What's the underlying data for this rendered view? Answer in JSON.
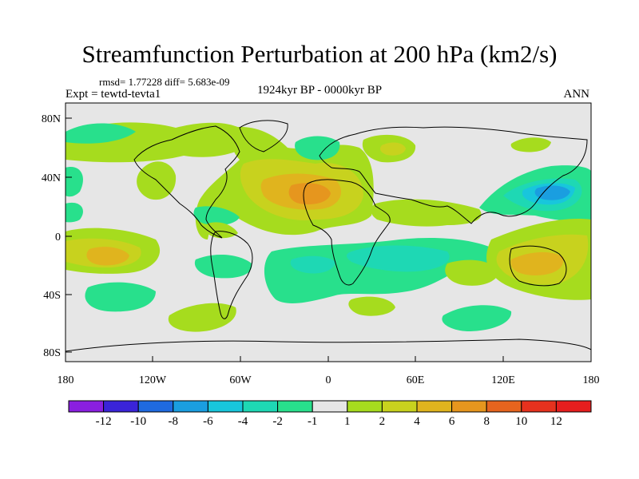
{
  "title": "Streamfunction Perturbation at 200 hPa (km2/s)",
  "stats_line": "rmsd= 1.77228  diff= 5.683e-09",
  "experiment": "Expt = tewtd-tevta1",
  "period": "1924kyr BP - 0000kyr BP",
  "season": "ANN",
  "lat_labels": [
    "80N",
    "40N",
    "0",
    "40S",
    "80S"
  ],
  "lon_labels": [
    "180",
    "120W",
    "60W",
    "0",
    "60E",
    "120E",
    "180"
  ],
  "colorbar": {
    "labels": [
      "-12",
      "-10",
      "-8",
      "-6",
      "-4",
      "-2",
      "-1",
      "1",
      "2",
      "4",
      "6",
      "8",
      "10",
      "12"
    ],
    "colors": [
      "#8a1fe0",
      "#3a24d8",
      "#1f6ae0",
      "#1a9ee0",
      "#18c6dc",
      "#1ed8b4",
      "#28e08c",
      "#e6e6e6",
      "#a6dc1e",
      "#c8d21e",
      "#e0b41e",
      "#e6961e",
      "#e6641e",
      "#e6321e",
      "#e61e1e"
    ]
  },
  "map_features": [
    {
      "label": "africa-high",
      "lon": -5,
      "lat": 27,
      "value": 8
    },
    {
      "label": "nw-pacific-low",
      "lon": 150,
      "lat": 30,
      "value": -8
    },
    {
      "label": "south-pacific-high",
      "lon": -145,
      "lat": -15,
      "value": 6
    },
    {
      "label": "australia-high",
      "lon": 145,
      "lat": -25,
      "value": 4
    },
    {
      "label": "south-indian-low",
      "lon": 30,
      "lat": -15,
      "value": -3
    },
    {
      "label": "south-atlantic-low",
      "lon": -20,
      "lat": -25,
      "value": -2
    },
    {
      "label": "north-atlantic-low",
      "lon": -5,
      "lat": 57,
      "value": -2
    },
    {
      "label": "scandinavia-high",
      "lon": 25,
      "lat": 60,
      "value": 2
    },
    {
      "label": "south-america-high",
      "lon": -65,
      "lat": -52,
      "value": 2
    }
  ]
}
